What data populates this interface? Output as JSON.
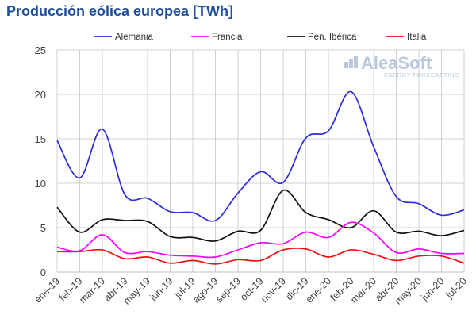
{
  "chart_data": {
    "type": "line",
    "title": "Producción eólica europea [TWh]",
    "xlabel": "",
    "ylabel": "",
    "ylim": [
      0,
      25
    ],
    "yticks": [
      0,
      5,
      10,
      15,
      20,
      25
    ],
    "grid": true,
    "legend_position": "top",
    "categories": [
      "ene-19",
      "feb-19",
      "mar-19",
      "abr-19",
      "may-19",
      "jun-19",
      "jul-19",
      "ago-19",
      "sep-19",
      "oct-19",
      "nov-19",
      "dic-19",
      "ene-20",
      "feb-20",
      "mar-20",
      "abr-20",
      "may-20",
      "jun-20",
      "jul-20"
    ],
    "series": [
      {
        "name": "Alemania",
        "color": "#2b2bd9",
        "values": [
          14.8,
          10.6,
          16.1,
          8.7,
          8.3,
          6.8,
          6.7,
          5.8,
          8.9,
          11.3,
          10.1,
          15.1,
          15.9,
          20.3,
          14.1,
          8.5,
          7.7,
          6.4,
          7.0
        ]
      },
      {
        "name": "Francia",
        "color": "#ff00ff",
        "values": [
          2.8,
          2.4,
          4.2,
          2.2,
          2.3,
          1.9,
          1.8,
          1.7,
          2.5,
          3.3,
          3.2,
          4.5,
          3.9,
          5.6,
          4.4,
          2.2,
          2.6,
          2.1,
          2.1
        ]
      },
      {
        "name": "Pen. Ibérica",
        "color": "#111111",
        "values": [
          7.3,
          4.5,
          5.9,
          5.8,
          5.7,
          4.0,
          3.9,
          3.5,
          4.6,
          4.7,
          9.2,
          6.7,
          5.9,
          5.0,
          6.9,
          4.5,
          4.6,
          4.1,
          4.7
        ]
      },
      {
        "name": "Italia",
        "color": "#ee1111",
        "values": [
          2.3,
          2.3,
          2.5,
          1.5,
          1.7,
          1.0,
          1.3,
          0.9,
          1.4,
          1.3,
          2.5,
          2.6,
          1.7,
          2.5,
          2.0,
          1.3,
          1.8,
          1.8,
          1.0
        ]
      }
    ]
  },
  "watermark": {
    "brand": "AleaSoft",
    "tagline": "ENERGY FORECASTING"
  }
}
